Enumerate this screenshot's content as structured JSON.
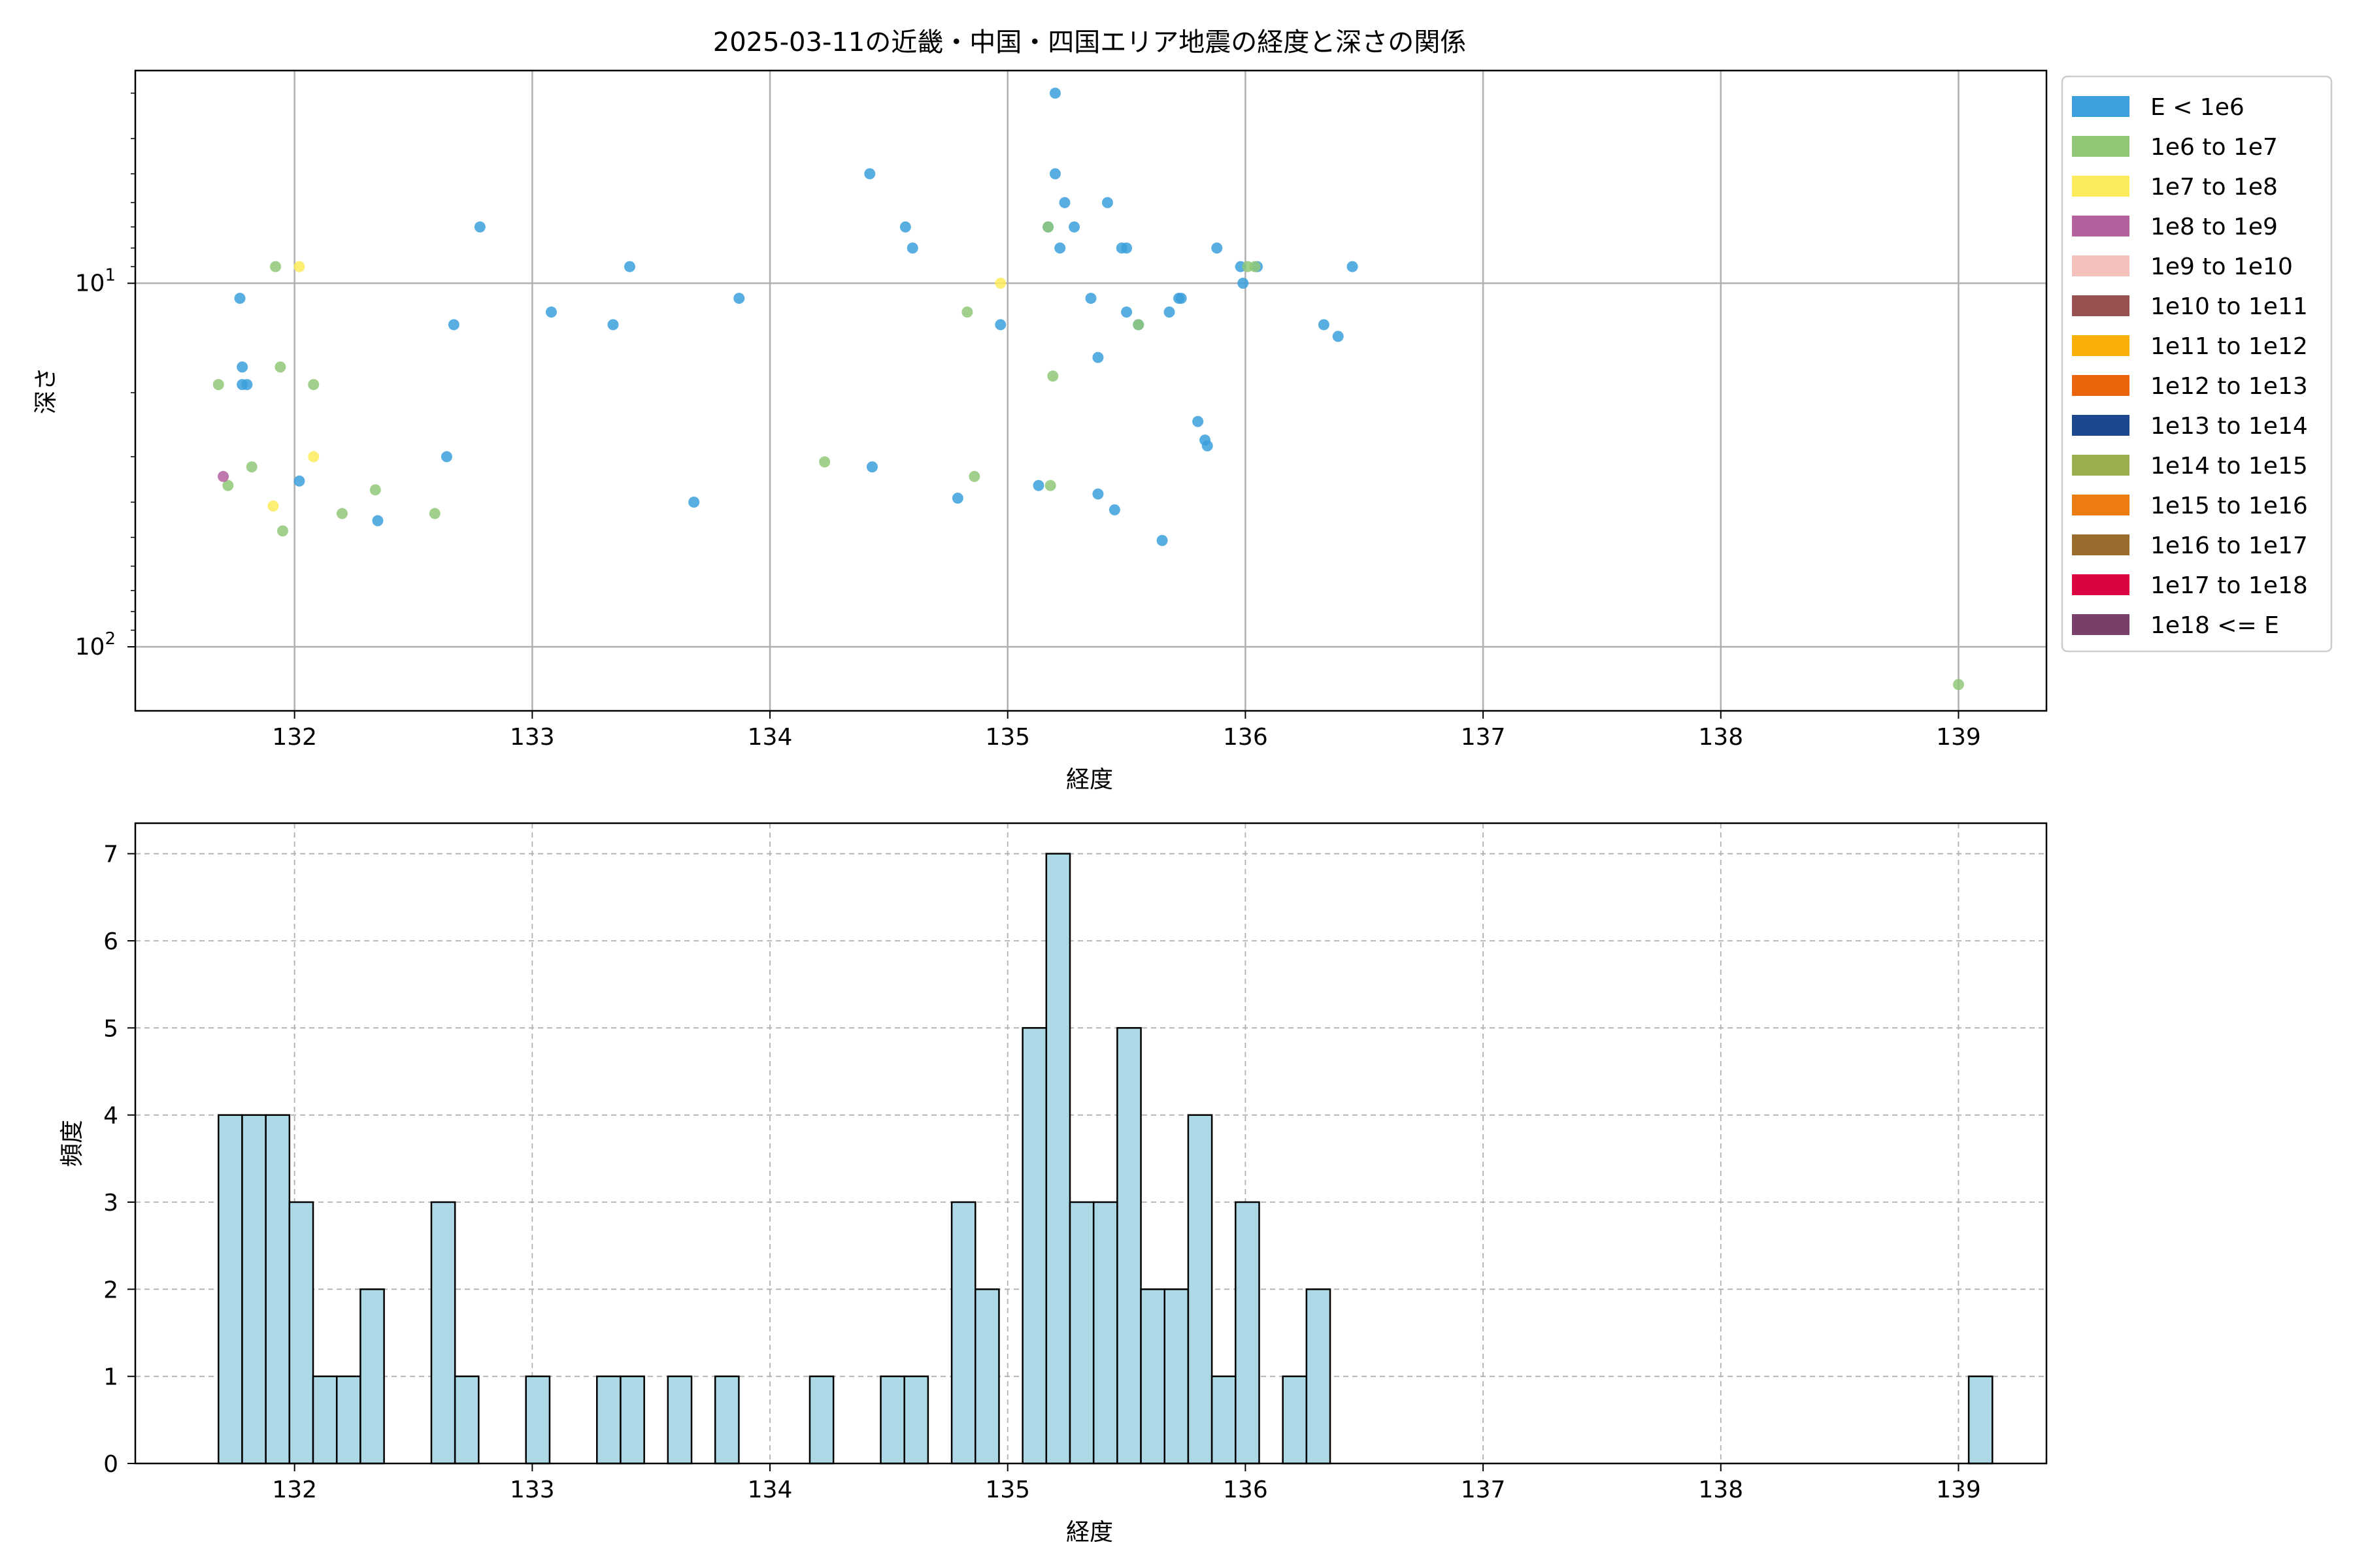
{
  "chart_data": [
    {
      "type": "scatter",
      "title": "2025-03-11の近畿・中国・四国エリア地震の経度と深さの関係",
      "xlabel": "経度",
      "ylabel": "深さ",
      "xlim": [
        131.33,
        139.37
      ],
      "ylim": [
        150,
        2.6
      ],
      "yscale": "log",
      "y_inverted": true,
      "xticks": [
        132,
        133,
        134,
        135,
        136,
        137,
        138,
        139
      ],
      "yticks": [
        {
          "value": 10,
          "base": "10",
          "exp": "1"
        },
        {
          "value": 100,
          "base": "10",
          "exp": "2"
        }
      ],
      "grid": true,
      "legend_placement": "outside right, top",
      "legend": [
        {
          "label": "E < 1e6",
          "color": "#3ca0dc"
        },
        {
          "label": "1e6 to 1e7",
          "color": "#90c878"
        },
        {
          "label": "1e7 to 1e8",
          "color": "#fcec5c"
        },
        {
          "label": "1e8 to 1e9",
          "color": "#b4609c"
        },
        {
          "label": "1e9 to 1e10",
          "color": "#f4c0bc"
        },
        {
          "label": "1e10 to 1e11",
          "color": "#985050"
        },
        {
          "label": "1e11 to 1e12",
          "color": "#f8b008"
        },
        {
          "label": "1e12 to 1e13",
          "color": "#ec6408"
        },
        {
          "label": "1e13 to 1e14",
          "color": "#1c4890"
        },
        {
          "label": "1e14 to 1e15",
          "color": "#9caf50"
        },
        {
          "label": "1e15 to 1e16",
          "color": "#ec7b10"
        },
        {
          "label": "1e16 to 1e17",
          "color": "#986c2c"
        },
        {
          "label": "1e17 to 1e18",
          "color": "#dc0440"
        },
        {
          "label": "1e18 <= E",
          "color": "#784068"
        }
      ],
      "series": [
        {
          "name": "E < 1e6",
          "points": [
            [
              131.77,
              11
            ],
            [
              131.78,
              17
            ],
            [
              131.78,
              19
            ],
            [
              131.8,
              19
            ],
            [
              132.02,
              35
            ],
            [
              132.35,
              45
            ],
            [
              132.64,
              30
            ],
            [
              132.67,
              13
            ],
            [
              132.78,
              7
            ],
            [
              133.08,
              12
            ],
            [
              133.34,
              13
            ],
            [
              133.41,
              9
            ],
            [
              133.68,
              40
            ],
            [
              133.87,
              11
            ],
            [
              134.42,
              5
            ],
            [
              134.43,
              32
            ],
            [
              134.57,
              7
            ],
            [
              134.6,
              8
            ],
            [
              134.79,
              39
            ],
            [
              134.97,
              13
            ],
            [
              135.13,
              36
            ],
            [
              135.17,
              7
            ],
            [
              135.2,
              3
            ],
            [
              135.2,
              5
            ],
            [
              135.22,
              8
            ],
            [
              135.24,
              6
            ],
            [
              135.28,
              7
            ],
            [
              135.35,
              11
            ],
            [
              135.38,
              16
            ],
            [
              135.38,
              38
            ],
            [
              135.42,
              6
            ],
            [
              135.45,
              42
            ],
            [
              135.48,
              8
            ],
            [
              135.5,
              8
            ],
            [
              135.5,
              12
            ],
            [
              135.55,
              13
            ],
            [
              135.65,
              51
            ],
            [
              135.68,
              12
            ],
            [
              135.72,
              11
            ],
            [
              135.73,
              11
            ],
            [
              135.8,
              24
            ],
            [
              135.83,
              27
            ],
            [
              135.84,
              28
            ],
            [
              135.88,
              8
            ],
            [
              135.98,
              9
            ],
            [
              135.99,
              10
            ],
            [
              136.05,
              9
            ],
            [
              136.33,
              13
            ],
            [
              136.39,
              14
            ],
            [
              136.45,
              9
            ]
          ]
        },
        {
          "name": "1e6 to 1e7",
          "points": [
            [
              131.68,
              19
            ],
            [
              131.72,
              36
            ],
            [
              131.82,
              32
            ],
            [
              131.92,
              9
            ],
            [
              131.94,
              17
            ],
            [
              131.95,
              48
            ],
            [
              132.08,
              19
            ],
            [
              132.2,
              43
            ],
            [
              132.34,
              37
            ],
            [
              132.59,
              43
            ],
            [
              134.23,
              31
            ],
            [
              134.83,
              12
            ],
            [
              134.86,
              34
            ],
            [
              135.17,
              7
            ],
            [
              135.18,
              36
            ],
            [
              135.19,
              18
            ],
            [
              135.55,
              13
            ],
            [
              136.01,
              9
            ],
            [
              136.04,
              9
            ],
            [
              139.0,
              127
            ]
          ]
        },
        {
          "name": "1e7 to 1e8",
          "points": [
            [
              131.91,
              41
            ],
            [
              132.02,
              9
            ],
            [
              132.08,
              30
            ],
            [
              134.97,
              10
            ]
          ]
        },
        {
          "name": "1e8 to 1e9",
          "points": [
            [
              131.7,
              34
            ]
          ]
        }
      ]
    },
    {
      "type": "bar",
      "title": "",
      "xlabel": "経度",
      "ylabel": "頻度",
      "xlim": [
        131.33,
        139.37
      ],
      "ylim": [
        0,
        7.35
      ],
      "xticks": [
        132,
        133,
        134,
        135,
        136,
        137,
        138,
        139
      ],
      "yticks": [
        0,
        1,
        2,
        3,
        4,
        5,
        6,
        7
      ],
      "grid": true,
      "bar_color": "#add8e6",
      "edge_color": "#000000",
      "bin_start": 131.68,
      "bin_width": 0.0995,
      "values": [
        4,
        4,
        4,
        3,
        1,
        1,
        2,
        0,
        0,
        3,
        1,
        0,
        0,
        1,
        0,
        0,
        1,
        1,
        0,
        1,
        0,
        1,
        0,
        0,
        0,
        1,
        0,
        0,
        1,
        1,
        0,
        3,
        2,
        0,
        5,
        7,
        3,
        3,
        5,
        2,
        2,
        4,
        1,
        3,
        0,
        1,
        2,
        0,
        0,
        0,
        0,
        0,
        0,
        0,
        0,
        0,
        0,
        0,
        0,
        0,
        0,
        0,
        0,
        0,
        0,
        0,
        0,
        0,
        0,
        0,
        0,
        0,
        0,
        0,
        1
      ]
    }
  ]
}
